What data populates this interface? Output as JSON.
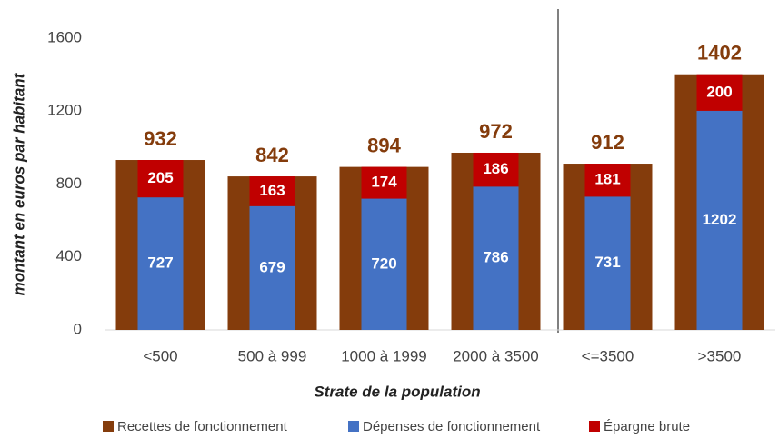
{
  "chart_data": {
    "type": "bar",
    "categories": [
      "<500",
      "500 à 999",
      "1000 à 1999",
      "2000 à 3500",
      "<=3500",
      ">3500"
    ],
    "series": [
      {
        "name": "Recettes de fonctionnement",
        "color": "#843C0C",
        "values": [
          932,
          842,
          894,
          972,
          912,
          1402
        ]
      },
      {
        "name": "Dépenses de fonctionnement",
        "color": "#4472C4",
        "values": [
          727,
          679,
          720,
          786,
          731,
          1202
        ]
      },
      {
        "name": "Épargne brute",
        "color": "#C00000",
        "values": [
          205,
          163,
          174,
          186,
          181,
          200
        ]
      }
    ],
    "xlabel": "Strate de la population",
    "ylabel": "montant en euros par habitant",
    "ylim": [
      0,
      1600
    ],
    "yticks": [
      0,
      400,
      800,
      1200,
      1600
    ],
    "grid": false
  }
}
